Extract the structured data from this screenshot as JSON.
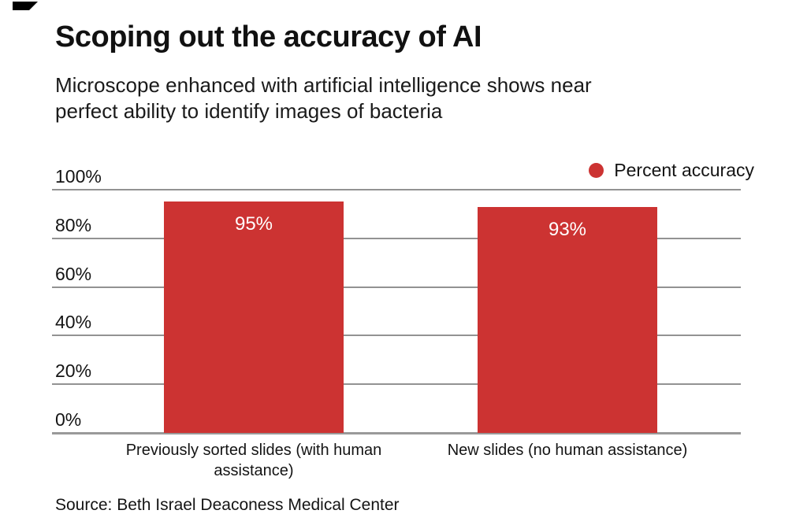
{
  "page": {
    "title": "Scoping out the accuracy of AI",
    "subtitle": "Microscope enhanced with artificial intelligence shows near perfect ability to identify images of bacteria",
    "subtitle_lines": [
      "Microscope enhanced with artificial intelligence shows near",
      "perfect ability to identify images of bacteria"
    ],
    "source": "Source: Beth Israel Deaconess Medical Center"
  },
  "legend": {
    "label": "Percent accuracy",
    "marker_color": "#cc3332"
  },
  "colors": {
    "bar": "#cc3332",
    "grid": "#929292",
    "axis": "#999999",
    "text": "#141414",
    "bar_label": "#ffffff",
    "background": "#ffffff",
    "corner_mark": "#000000"
  },
  "chart_data": {
    "type": "bar",
    "title": "Scoping out the accuracy of AI",
    "subtitle": "Microscope enhanced with artificial intelligence shows near perfect ability to identify images of bacteria",
    "categories": [
      "Previously sorted slides (with human assistance)",
      "New slides (no human assistance)"
    ],
    "category_display_lines": [
      [
        "Previously sorted slides (with human",
        "assistance)"
      ],
      [
        "New slides (no human assistance)"
      ]
    ],
    "series": [
      {
        "name": "Percent accuracy",
        "values": [
          95,
          93
        ],
        "color": "#cc3332"
      }
    ],
    "bar_value_labels": [
      "95%",
      "93%"
    ],
    "yticks": [
      {
        "value": 100,
        "label": "100%"
      },
      {
        "value": 80,
        "label": "80%"
      },
      {
        "value": 60,
        "label": "60%"
      },
      {
        "value": 40,
        "label": "40%"
      },
      {
        "value": 20,
        "label": "20%"
      },
      {
        "value": 0,
        "label": "0%"
      }
    ],
    "ylim": [
      0,
      100
    ],
    "grid": true,
    "legend_position": "top-right",
    "source": "Source: Beth Israel Deaconess Medical Center"
  }
}
